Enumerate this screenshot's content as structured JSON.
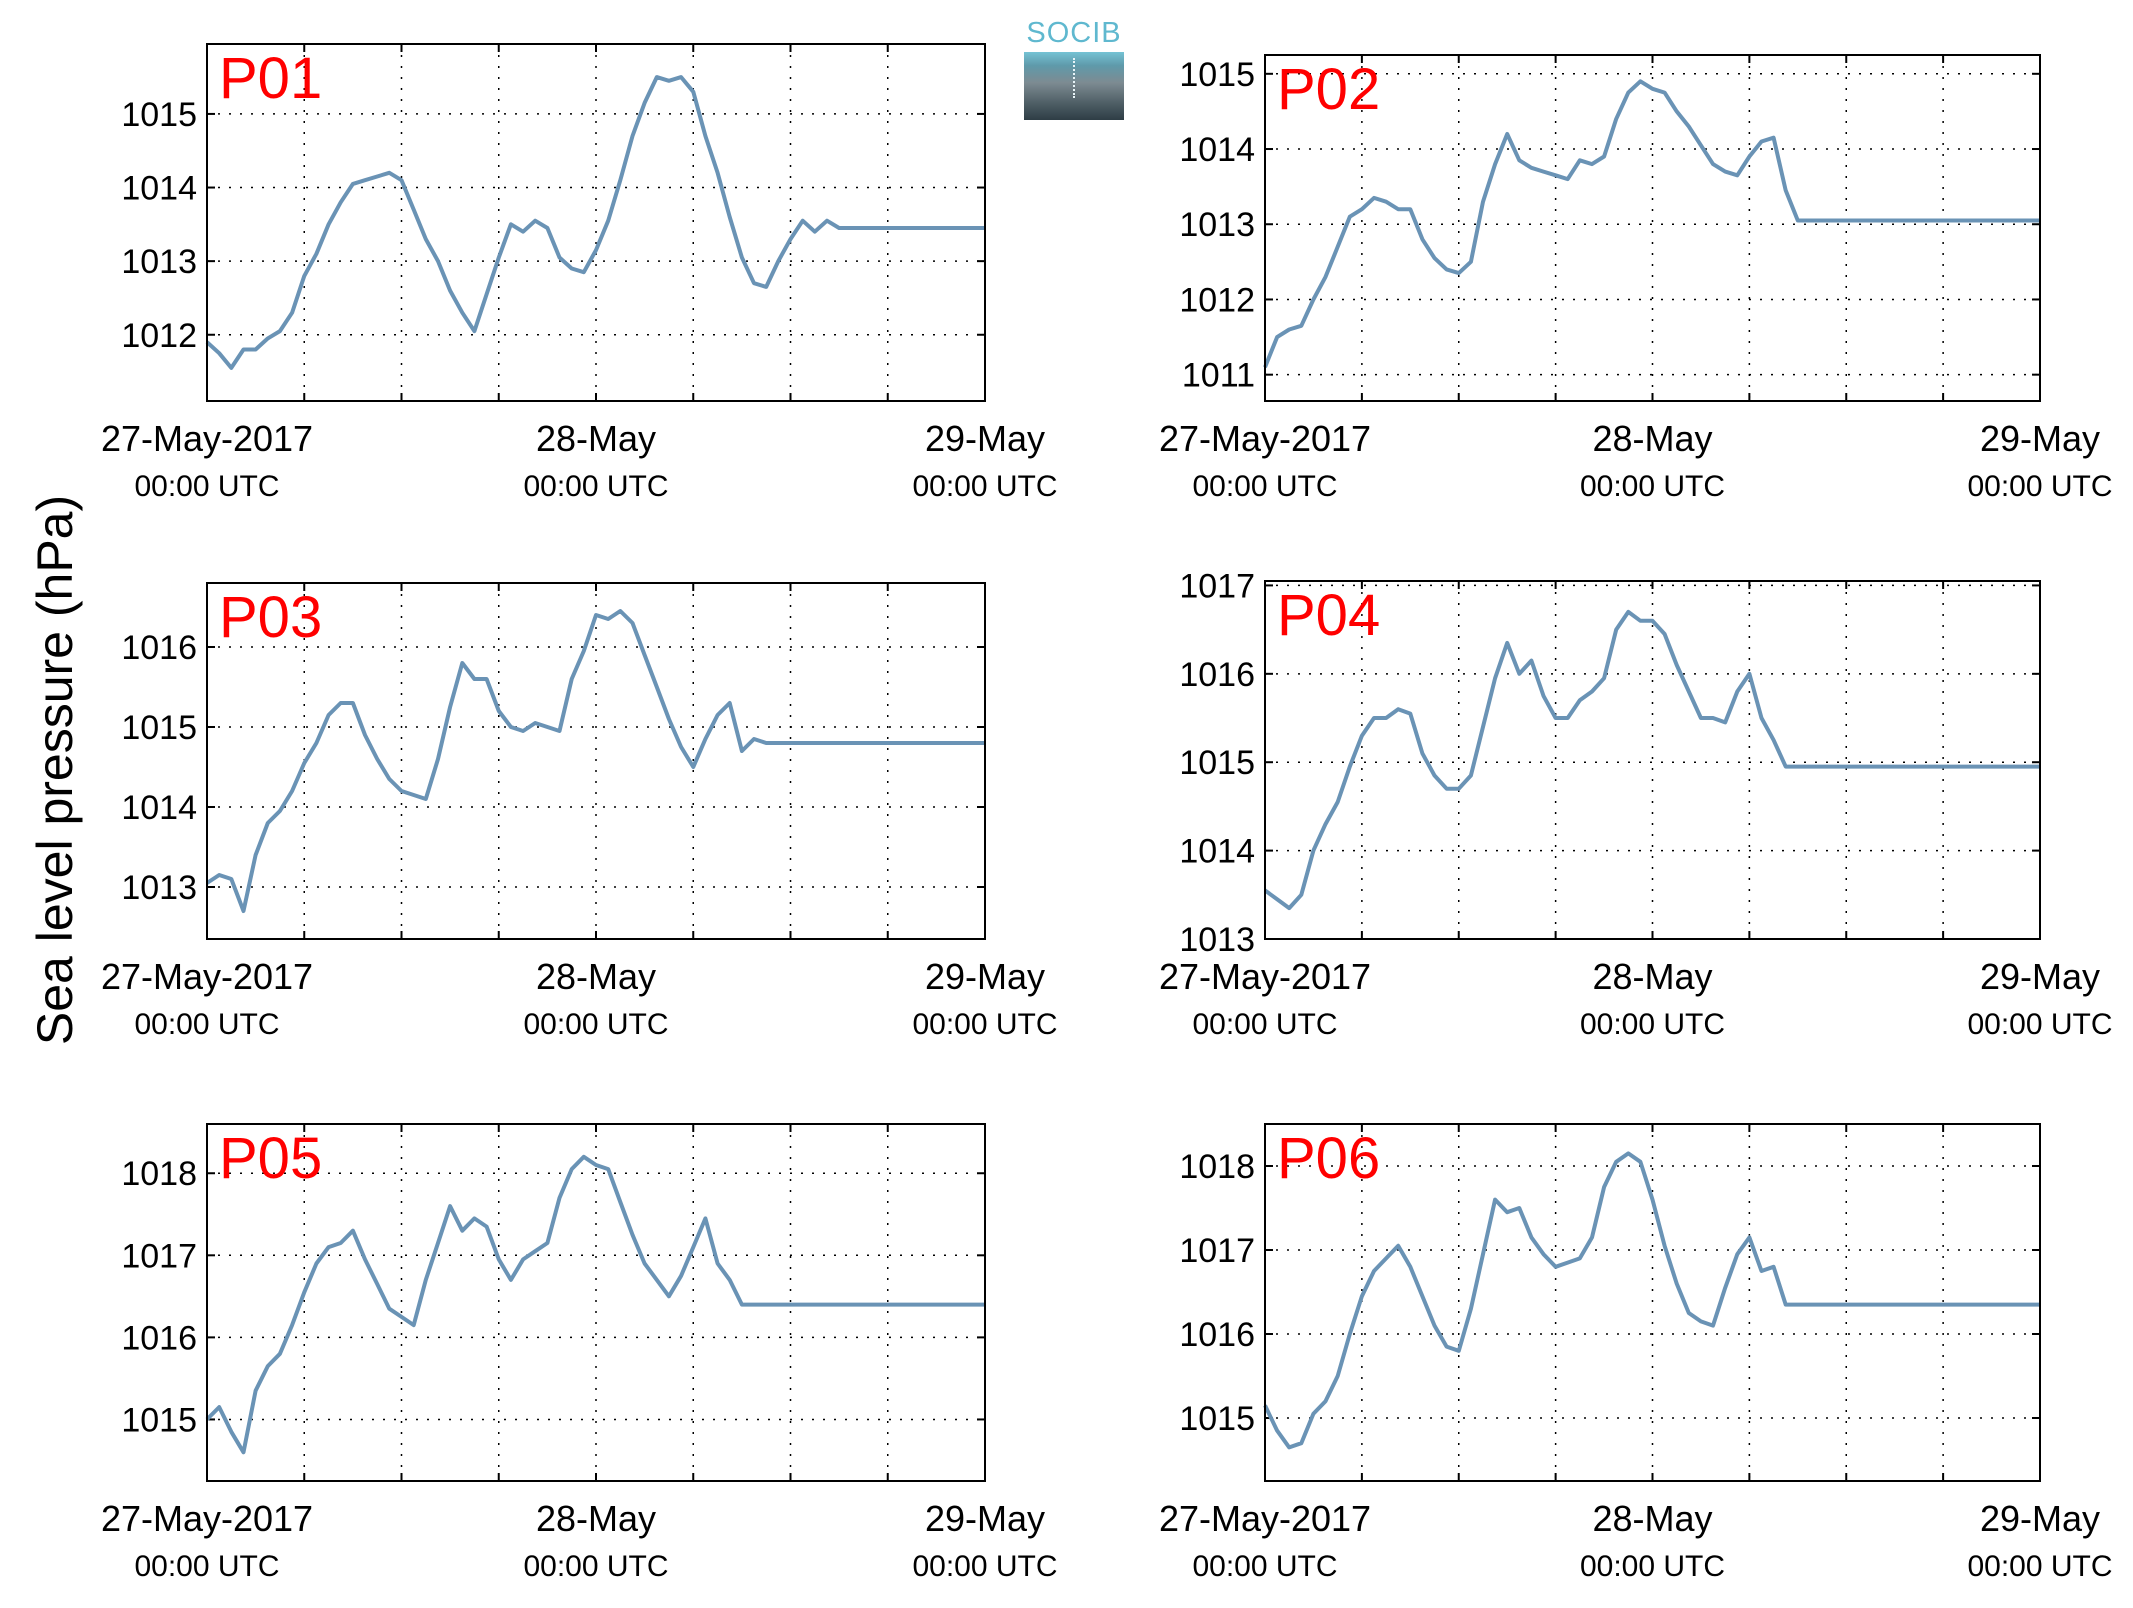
{
  "figure": {
    "ylabel": "Sea level pressure (hPa)",
    "logo_text": "SOCIB"
  },
  "colors": {
    "line": "#6a93b5",
    "panel_label": "#ff0000"
  },
  "chart_data": [
    {
      "type": "line",
      "label": "P01",
      "xticks": [
        {
          "l1": "27-May-2017",
          "l2": "00:00 UTC"
        },
        {
          "l1": "28-May",
          "l2": "00:00 UTC"
        },
        {
          "l1": "29-May",
          "l2": "00:00 UTC"
        }
      ],
      "ylim": [
        1011.1,
        1015.95
      ],
      "yticks": [
        1012,
        1013,
        1014,
        1015
      ],
      "x": [
        0,
        0.75,
        1.5,
        2.25,
        3,
        3.75,
        4.5,
        5.25,
        6,
        6.75,
        7.5,
        8.25,
        9,
        9.75,
        10.5,
        11.25,
        12,
        12.75,
        13.5,
        14.25,
        15,
        15.75,
        16.5,
        17.25,
        18,
        18.75,
        19.5,
        20.25,
        21,
        21.75,
        22.5,
        23.25,
        24,
        24.75,
        25.5,
        26.25,
        27,
        27.75,
        28.5,
        29.25,
        30,
        30.75,
        31.5,
        32.25,
        33,
        33.75,
        34.5,
        35.25,
        36,
        36.75,
        37.5,
        38.25,
        39,
        39.75,
        40.5,
        41.25,
        42,
        42.75,
        43.5,
        44.25,
        45,
        45.75,
        46.5,
        47.25,
        48
      ],
      "y": [
        1011.9,
        1011.75,
        1011.55,
        1011.8,
        1011.8,
        1011.95,
        1012.05,
        1012.3,
        1012.8,
        1013.1,
        1013.5,
        1013.8,
        1014.05,
        1014.1,
        1014.15,
        1014.2,
        1014.1,
        1013.7,
        1013.3,
        1013.0,
        1012.6,
        1012.3,
        1012.05,
        1012.55,
        1013.05,
        1013.5,
        1013.4,
        1013.55,
        1013.45,
        1013.05,
        1012.9,
        1012.85,
        1013.15,
        1013.55,
        1014.1,
        1014.7,
        1015.15,
        1015.5,
        1015.45,
        1015.5,
        1015.3,
        1014.7,
        1014.2,
        1013.6,
        1013.05,
        1012.7,
        1012.65,
        1013.0,
        1013.3,
        1013.55,
        1013.4,
        1013.55,
        1013.45,
        1013.45,
        1013.45,
        1013.45,
        1013.45,
        1013.45,
        1013.45,
        1013.45,
        1013.45,
        1013.45,
        1013.45,
        1013.45,
        1013.45
      ]
    },
    {
      "type": "line",
      "label": "P02",
      "xticks": [
        {
          "l1": "27-May-2017",
          "l2": "00:00 UTC"
        },
        {
          "l1": "28-May",
          "l2": "00:00 UTC"
        },
        {
          "l1": "29-May",
          "l2": "00:00 UTC"
        }
      ],
      "ylim": [
        1010.65,
        1015.25
      ],
      "yticks": [
        1011,
        1012,
        1013,
        1014,
        1015
      ],
      "x": [
        0,
        0.75,
        1.5,
        2.25,
        3,
        3.75,
        4.5,
        5.25,
        6,
        6.75,
        7.5,
        8.25,
        9,
        9.75,
        10.5,
        11.25,
        12,
        12.75,
        13.5,
        14.25,
        15,
        15.75,
        16.5,
        17.25,
        18,
        18.75,
        19.5,
        20.25,
        21,
        21.75,
        22.5,
        23.25,
        24,
        24.75,
        25.5,
        26.25,
        27,
        27.75,
        28.5,
        29.25,
        30,
        30.75,
        31.5,
        32.25,
        33,
        33.75,
        34.5,
        35.25,
        36,
        36.75,
        37.5,
        38.25,
        39,
        39.75,
        40.5,
        41.25,
        42,
        42.75,
        43.5,
        44.25,
        45,
        45.75,
        46.5,
        47.25,
        48
      ],
      "y": [
        1011.1,
        1011.5,
        1011.6,
        1011.65,
        1012.0,
        1012.3,
        1012.7,
        1013.1,
        1013.2,
        1013.35,
        1013.3,
        1013.2,
        1013.2,
        1012.8,
        1012.55,
        1012.4,
        1012.35,
        1012.5,
        1013.3,
        1013.8,
        1014.2,
        1013.85,
        1013.75,
        1013.7,
        1013.65,
        1013.6,
        1013.85,
        1013.8,
        1013.9,
        1014.4,
        1014.75,
        1014.9,
        1014.8,
        1014.75,
        1014.5,
        1014.3,
        1014.05,
        1013.8,
        1013.7,
        1013.65,
        1013.9,
        1014.1,
        1014.15,
        1013.45,
        1013.05,
        1013.05,
        1013.05,
        1013.05,
        1013.05,
        1013.05,
        1013.05,
        1013.05,
        1013.05,
        1013.05,
        1013.05,
        1013.05,
        1013.05,
        1013.05,
        1013.05,
        1013.05,
        1013.05,
        1013.05,
        1013.05,
        1013.05,
        1013.05
      ]
    },
    {
      "type": "line",
      "label": "P03",
      "xticks": [
        {
          "l1": "27-May-2017",
          "l2": "00:00 UTC"
        },
        {
          "l1": "28-May",
          "l2": "00:00 UTC"
        },
        {
          "l1": "29-May",
          "l2": "00:00 UTC"
        }
      ],
      "ylim": [
        1012.35,
        1016.8
      ],
      "yticks": [
        1013,
        1014,
        1015,
        1016
      ],
      "x": [
        0,
        0.75,
        1.5,
        2.25,
        3,
        3.75,
        4.5,
        5.25,
        6,
        6.75,
        7.5,
        8.25,
        9,
        9.75,
        10.5,
        11.25,
        12,
        12.75,
        13.5,
        14.25,
        15,
        15.75,
        16.5,
        17.25,
        18,
        18.75,
        19.5,
        20.25,
        21,
        21.75,
        22.5,
        23.25,
        24,
        24.75,
        25.5,
        26.25,
        27,
        27.75,
        28.5,
        29.25,
        30,
        30.75,
        31.5,
        32.25,
        33,
        33.75,
        34.5,
        35.25,
        36,
        36.75,
        37.5,
        38.25,
        39,
        39.75,
        40.5,
        41.25,
        42,
        42.75,
        43.5,
        44.25,
        45,
        45.75,
        46.5,
        47.25,
        48
      ],
      "y": [
        1013.05,
        1013.15,
        1013.1,
        1012.7,
        1013.4,
        1013.8,
        1013.95,
        1014.2,
        1014.55,
        1014.8,
        1015.15,
        1015.3,
        1015.3,
        1014.9,
        1014.6,
        1014.35,
        1014.2,
        1014.15,
        1014.1,
        1014.6,
        1015.25,
        1015.8,
        1015.6,
        1015.6,
        1015.2,
        1015.0,
        1014.95,
        1015.05,
        1015.0,
        1014.95,
        1015.6,
        1015.95,
        1016.4,
        1016.35,
        1016.45,
        1016.3,
        1015.9,
        1015.5,
        1015.1,
        1014.75,
        1014.5,
        1014.85,
        1015.15,
        1015.3,
        1014.7,
        1014.85,
        1014.8,
        1014.8,
        1014.8,
        1014.8,
        1014.8,
        1014.8,
        1014.8,
        1014.8,
        1014.8,
        1014.8,
        1014.8,
        1014.8,
        1014.8,
        1014.8,
        1014.8,
        1014.8,
        1014.8,
        1014.8,
        1014.8
      ]
    },
    {
      "type": "line",
      "label": "P04",
      "xticks": [
        {
          "l1": "27-May-2017",
          "l2": "00:00 UTC"
        },
        {
          "l1": "28-May",
          "l2": "00:00 UTC"
        },
        {
          "l1": "29-May",
          "l2": "00:00 UTC"
        }
      ],
      "ylim": [
        1013.0,
        1017.05
      ],
      "yticks": [
        1013,
        1014,
        1015,
        1016,
        1017
      ],
      "x": [
        0,
        0.75,
        1.5,
        2.25,
        3,
        3.75,
        4.5,
        5.25,
        6,
        6.75,
        7.5,
        8.25,
        9,
        9.75,
        10.5,
        11.25,
        12,
        12.75,
        13.5,
        14.25,
        15,
        15.75,
        16.5,
        17.25,
        18,
        18.75,
        19.5,
        20.25,
        21,
        21.75,
        22.5,
        23.25,
        24,
        24.75,
        25.5,
        26.25,
        27,
        27.75,
        28.5,
        29.25,
        30,
        30.75,
        31.5,
        32.25,
        33,
        33.75,
        34.5,
        35.25,
        36,
        36.75,
        37.5,
        38.25,
        39,
        39.75,
        40.5,
        41.25,
        42,
        42.75,
        43.5,
        44.25,
        45,
        45.75,
        46.5,
        47.25,
        48
      ],
      "y": [
        1013.55,
        1013.45,
        1013.35,
        1013.5,
        1014.0,
        1014.3,
        1014.55,
        1014.95,
        1015.3,
        1015.5,
        1015.5,
        1015.6,
        1015.55,
        1015.1,
        1014.85,
        1014.7,
        1014.7,
        1014.85,
        1015.4,
        1015.95,
        1016.35,
        1016.0,
        1016.15,
        1015.75,
        1015.5,
        1015.5,
        1015.7,
        1015.8,
        1015.95,
        1016.5,
        1016.7,
        1016.6,
        1016.6,
        1016.45,
        1016.1,
        1015.8,
        1015.5,
        1015.5,
        1015.45,
        1015.8,
        1016.0,
        1015.5,
        1015.25,
        1014.95,
        1014.95,
        1014.95,
        1014.95,
        1014.95,
        1014.95,
        1014.95,
        1014.95,
        1014.95,
        1014.95,
        1014.95,
        1014.95,
        1014.95,
        1014.95,
        1014.95,
        1014.95,
        1014.95,
        1014.95,
        1014.95,
        1014.95,
        1014.95,
        1014.95
      ]
    },
    {
      "type": "line",
      "label": "P05",
      "xticks": [
        {
          "l1": "27-May-2017",
          "l2": "00:00 UTC"
        },
        {
          "l1": "28-May",
          "l2": "00:00 UTC"
        },
        {
          "l1": "29-May",
          "l2": "00:00 UTC"
        }
      ],
      "ylim": [
        1014.25,
        1018.6
      ],
      "yticks": [
        1015,
        1016,
        1017,
        1018
      ],
      "x": [
        0,
        0.75,
        1.5,
        2.25,
        3,
        3.75,
        4.5,
        5.25,
        6,
        6.75,
        7.5,
        8.25,
        9,
        9.75,
        10.5,
        11.25,
        12,
        12.75,
        13.5,
        14.25,
        15,
        15.75,
        16.5,
        17.25,
        18,
        18.75,
        19.5,
        20.25,
        21,
        21.75,
        22.5,
        23.25,
        24,
        24.75,
        25.5,
        26.25,
        27,
        27.75,
        28.5,
        29.25,
        30,
        30.75,
        31.5,
        32.25,
        33,
        33.75,
        34.5,
        35.25,
        36,
        36.75,
        37.5,
        38.25,
        39,
        39.75,
        40.5,
        41.25,
        42,
        42.75,
        43.5,
        44.25,
        45,
        45.75,
        46.5,
        47.25,
        48
      ],
      "y": [
        1015.0,
        1015.15,
        1014.85,
        1014.6,
        1015.35,
        1015.65,
        1015.8,
        1016.15,
        1016.55,
        1016.9,
        1017.1,
        1017.15,
        1017.3,
        1016.95,
        1016.65,
        1016.35,
        1016.25,
        1016.15,
        1016.7,
        1017.15,
        1017.6,
        1017.3,
        1017.45,
        1017.35,
        1016.95,
        1016.7,
        1016.95,
        1017.05,
        1017.15,
        1017.7,
        1018.05,
        1018.2,
        1018.1,
        1018.05,
        1017.65,
        1017.25,
        1016.9,
        1016.7,
        1016.5,
        1016.75,
        1017.1,
        1017.45,
        1016.9,
        1016.7,
        1016.4,
        1016.4,
        1016.4,
        1016.4,
        1016.4,
        1016.4,
        1016.4,
        1016.4,
        1016.4,
        1016.4,
        1016.4,
        1016.4,
        1016.4,
        1016.4,
        1016.4,
        1016.4,
        1016.4,
        1016.4,
        1016.4,
        1016.4,
        1016.4
      ]
    },
    {
      "type": "line",
      "label": "P06",
      "xticks": [
        {
          "l1": "27-May-2017",
          "l2": "00:00 UTC"
        },
        {
          "l1": "28-May",
          "l2": "00:00 UTC"
        },
        {
          "l1": "29-May",
          "l2": "00:00 UTC"
        }
      ],
      "ylim": [
        1014.25,
        1018.5
      ],
      "yticks": [
        1015,
        1016,
        1017,
        1018
      ],
      "x": [
        0,
        0.75,
        1.5,
        2.25,
        3,
        3.75,
        4.5,
        5.25,
        6,
        6.75,
        7.5,
        8.25,
        9,
        9.75,
        10.5,
        11.25,
        12,
        12.75,
        13.5,
        14.25,
        15,
        15.75,
        16.5,
        17.25,
        18,
        18.75,
        19.5,
        20.25,
        21,
        21.75,
        22.5,
        23.25,
        24,
        24.75,
        25.5,
        26.25,
        27,
        27.75,
        28.5,
        29.25,
        30,
        30.75,
        31.5,
        32.25,
        33,
        33.75,
        34.5,
        35.25,
        36,
        36.75,
        37.5,
        38.25,
        39,
        39.75,
        40.5,
        41.25,
        42,
        42.75,
        43.5,
        44.25,
        45,
        45.75,
        46.5,
        47.25,
        48
      ],
      "y": [
        1015.15,
        1014.85,
        1014.65,
        1014.7,
        1015.05,
        1015.2,
        1015.5,
        1016.0,
        1016.45,
        1016.75,
        1016.9,
        1017.05,
        1016.8,
        1016.45,
        1016.1,
        1015.85,
        1015.8,
        1016.3,
        1016.95,
        1017.6,
        1017.45,
        1017.5,
        1017.15,
        1016.95,
        1016.8,
        1016.85,
        1016.9,
        1017.15,
        1017.75,
        1018.05,
        1018.15,
        1018.05,
        1017.6,
        1017.05,
        1016.6,
        1016.25,
        1016.15,
        1016.1,
        1016.55,
        1016.95,
        1017.15,
        1016.75,
        1016.8,
        1016.35,
        1016.35,
        1016.35,
        1016.35,
        1016.35,
        1016.35,
        1016.35,
        1016.35,
        1016.35,
        1016.35,
        1016.35,
        1016.35,
        1016.35,
        1016.35,
        1016.35,
        1016.35,
        1016.35,
        1016.35,
        1016.35,
        1016.35,
        1016.35,
        1016.35
      ]
    }
  ]
}
